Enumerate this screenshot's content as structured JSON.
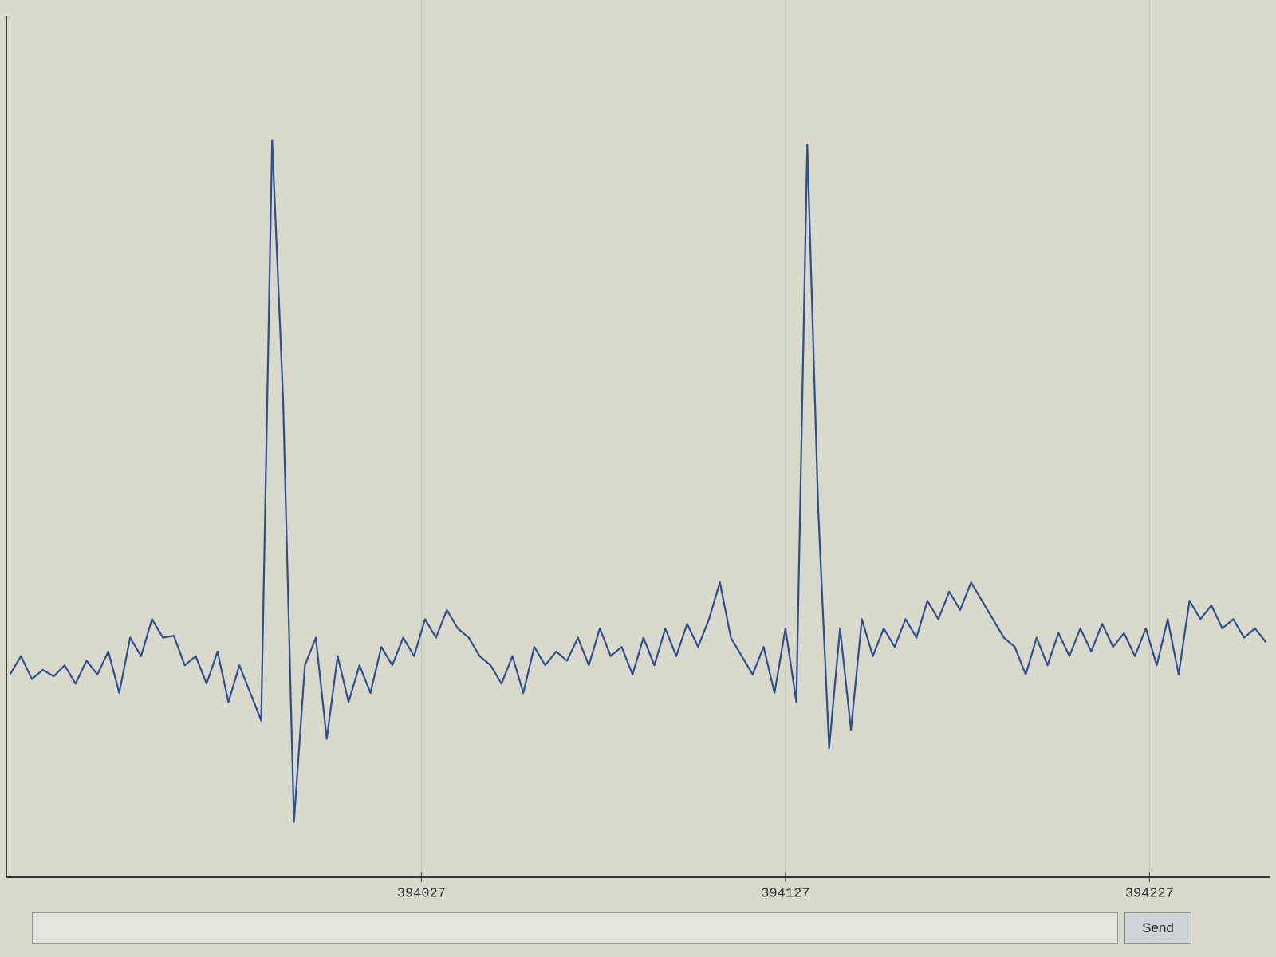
{
  "chart_data": {
    "type": "line",
    "x": [
      393914,
      393917,
      393920,
      393923,
      393926,
      393929,
      393932,
      393935,
      393938,
      393941,
      393944,
      393947,
      393950,
      393953,
      393956,
      393959,
      393962,
      393965,
      393968,
      393971,
      393974,
      393977,
      393980,
      393983,
      393986,
      393989,
      393992,
      393995,
      393998,
      394001,
      394004,
      394007,
      394010,
      394013,
      394016,
      394019,
      394022,
      394025,
      394028,
      394031,
      394034,
      394037,
      394040,
      394043,
      394046,
      394049,
      394052,
      394055,
      394058,
      394061,
      394064,
      394067,
      394070,
      394073,
      394076,
      394079,
      394082,
      394085,
      394088,
      394091,
      394094,
      394097,
      394100,
      394103,
      394106,
      394109,
      394112,
      394115,
      394118,
      394121,
      394124,
      394127,
      394130,
      394133,
      394136,
      394139,
      394142,
      394145,
      394148,
      394151,
      394154,
      394157,
      394160,
      394163,
      394166,
      394169,
      394172,
      394175,
      394178,
      394181,
      394184,
      394187,
      394190,
      394193,
      394196,
      394199,
      394202,
      394205,
      394208,
      394211,
      394214,
      394217,
      394220,
      394223,
      394226,
      394229,
      394232,
      394235,
      394238,
      394241,
      394244,
      394247,
      394250,
      394253,
      394256,
      394259
    ],
    "series": [
      {
        "color": "#2f4f8f",
        "values": [
          320,
          340,
          315,
          325,
          318,
          330,
          310,
          335,
          320,
          345,
          300,
          360,
          340,
          380,
          360,
          362,
          330,
          340,
          310,
          345,
          290,
          330,
          300,
          270,
          900,
          620,
          160,
          330,
          360,
          250,
          340,
          290,
          330,
          300,
          350,
          330,
          360,
          340,
          380,
          360,
          390,
          370,
          360,
          340,
          330,
          310,
          340,
          300,
          350,
          330,
          345,
          335,
          360,
          330,
          370,
          340,
          350,
          320,
          360,
          330,
          370,
          340,
          375,
          350,
          380,
          420,
          360,
          340,
          320,
          350,
          300,
          370,
          290,
          895,
          500,
          240,
          370,
          260,
          380,
          340,
          370,
          350,
          380,
          360,
          400,
          380,
          410,
          390,
          420,
          400,
          380,
          360,
          350,
          320,
          360,
          330,
          365,
          340,
          370,
          345,
          375,
          350,
          365,
          340,
          370,
          330,
          380,
          320,
          400,
          380,
          395,
          370,
          380,
          360,
          370,
          355
        ]
      }
    ],
    "xlim": [
      393913,
      394260
    ],
    "ylim": [
      100,
      1000
    ],
    "xticks": [
      394027,
      394127,
      394227
    ],
    "grid": true
  },
  "ui": {
    "send_button": "Send"
  }
}
